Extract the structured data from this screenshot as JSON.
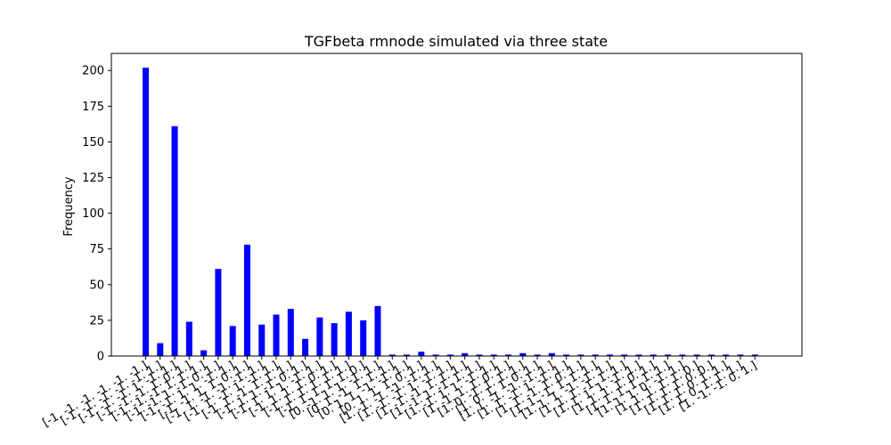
{
  "chart_data": {
    "type": "bar",
    "title": "TGFbeta rmnode simulated via three state",
    "xlabel": "",
    "ylabel": "Frequency",
    "ylim": [
      0,
      212
    ],
    "yticks": [
      0,
      25,
      50,
      75,
      100,
      125,
      150,
      175,
      200
    ],
    "bar_color": "#0000ff",
    "grid": false,
    "categories": [
      "[-1. -1. -1. -1. -1. -1.]",
      "[-1. -1. -1. -1. -1. 1.]",
      "[-1. -1. -1. 1. -1. 1.]",
      "[-1. -1. -1. 1. 0. 1.]",
      "[-1. -1. -1. 1. 1. 1.]",
      "[-1. -1. 1. -1. 0. 1.]",
      "[-1. -1. 1. 1. -1. 1.]",
      "[-1. -1. 1. 1. 0. 1.]",
      "[-1. 1. -1. -1. -1. 1.]",
      "[-1. 1. -1. 1. -1. 1.]",
      "[-1. 1. -1. 1. 1. 1.]",
      "[-1. 1. 1. -1. 0. 1.]",
      "[-1. 1. 1. 1. -1. 1.]",
      "[-1. 1. 1. 1. 0. 1.]",
      "[-1. 1. 1. 1. 1. 1.]",
      "[-1. 1. 1. 1. 1. 0.]",
      "[0. -1. 1. 1. -1. 1.]",
      "[0. 1. -1. 1. 1. 1.]",
      "[0. 1. 1. -1. -1. 1.]",
      "[0. 1. 1. 1. 0. 1.]",
      "[1. -1. -1. -1. -1. 1.]",
      "[1. -1. -1. 1. -1. 1.]",
      "[1. -1. -1. 1. 1. 1.]",
      "[1. -1. 1. -1. 1. 1.]",
      "[1. -1. 1. 1. -1. 1.]",
      "[1. -1. 1. 1. 0. 1.]",
      "[1. 0. -1. 1. 1. 1.]",
      "[1. 0. 1. 1. 0. 1.]",
      "[1. 1. -1. -1. -1. 1.]",
      "[1. 1. -1. 1. -1. 1.]",
      "[1. 1. -1. 1. 0. 1.]",
      "[1. 1. -1. 1. 1. 1.]",
      "[1. 1. 1. -1. -1. 1.]",
      "[1. 1. 1. -1. 1. 1.]",
      "[1. 1. 1. 1. -1. 1.]",
      "[1. 1. 1. 1. 0. 1.]",
      "[1. 1. 1. 1. 1. 1.]",
      "[1. 1. 1. 0. -1. 1.]",
      "[1. 1. 1. 1. 1. 0.]",
      "[1. 1. 1. 1. 0. 0.]",
      "[1. 1. 1. 0. 1. 1.]",
      "[1. 1. 0. 1. 1. 1.]",
      "[1. -1. -1. 0. 1.]"
    ],
    "values": [
      202,
      9,
      161,
      24,
      4,
      61,
      21,
      78,
      22,
      29,
      33,
      12,
      27,
      23,
      31,
      25,
      35,
      1,
      1,
      3,
      1,
      1,
      2,
      1,
      1,
      1,
      2,
      1,
      2,
      1,
      1,
      1,
      1,
      1,
      1,
      1,
      1,
      1,
      1,
      1,
      1,
      1,
      1
    ]
  }
}
